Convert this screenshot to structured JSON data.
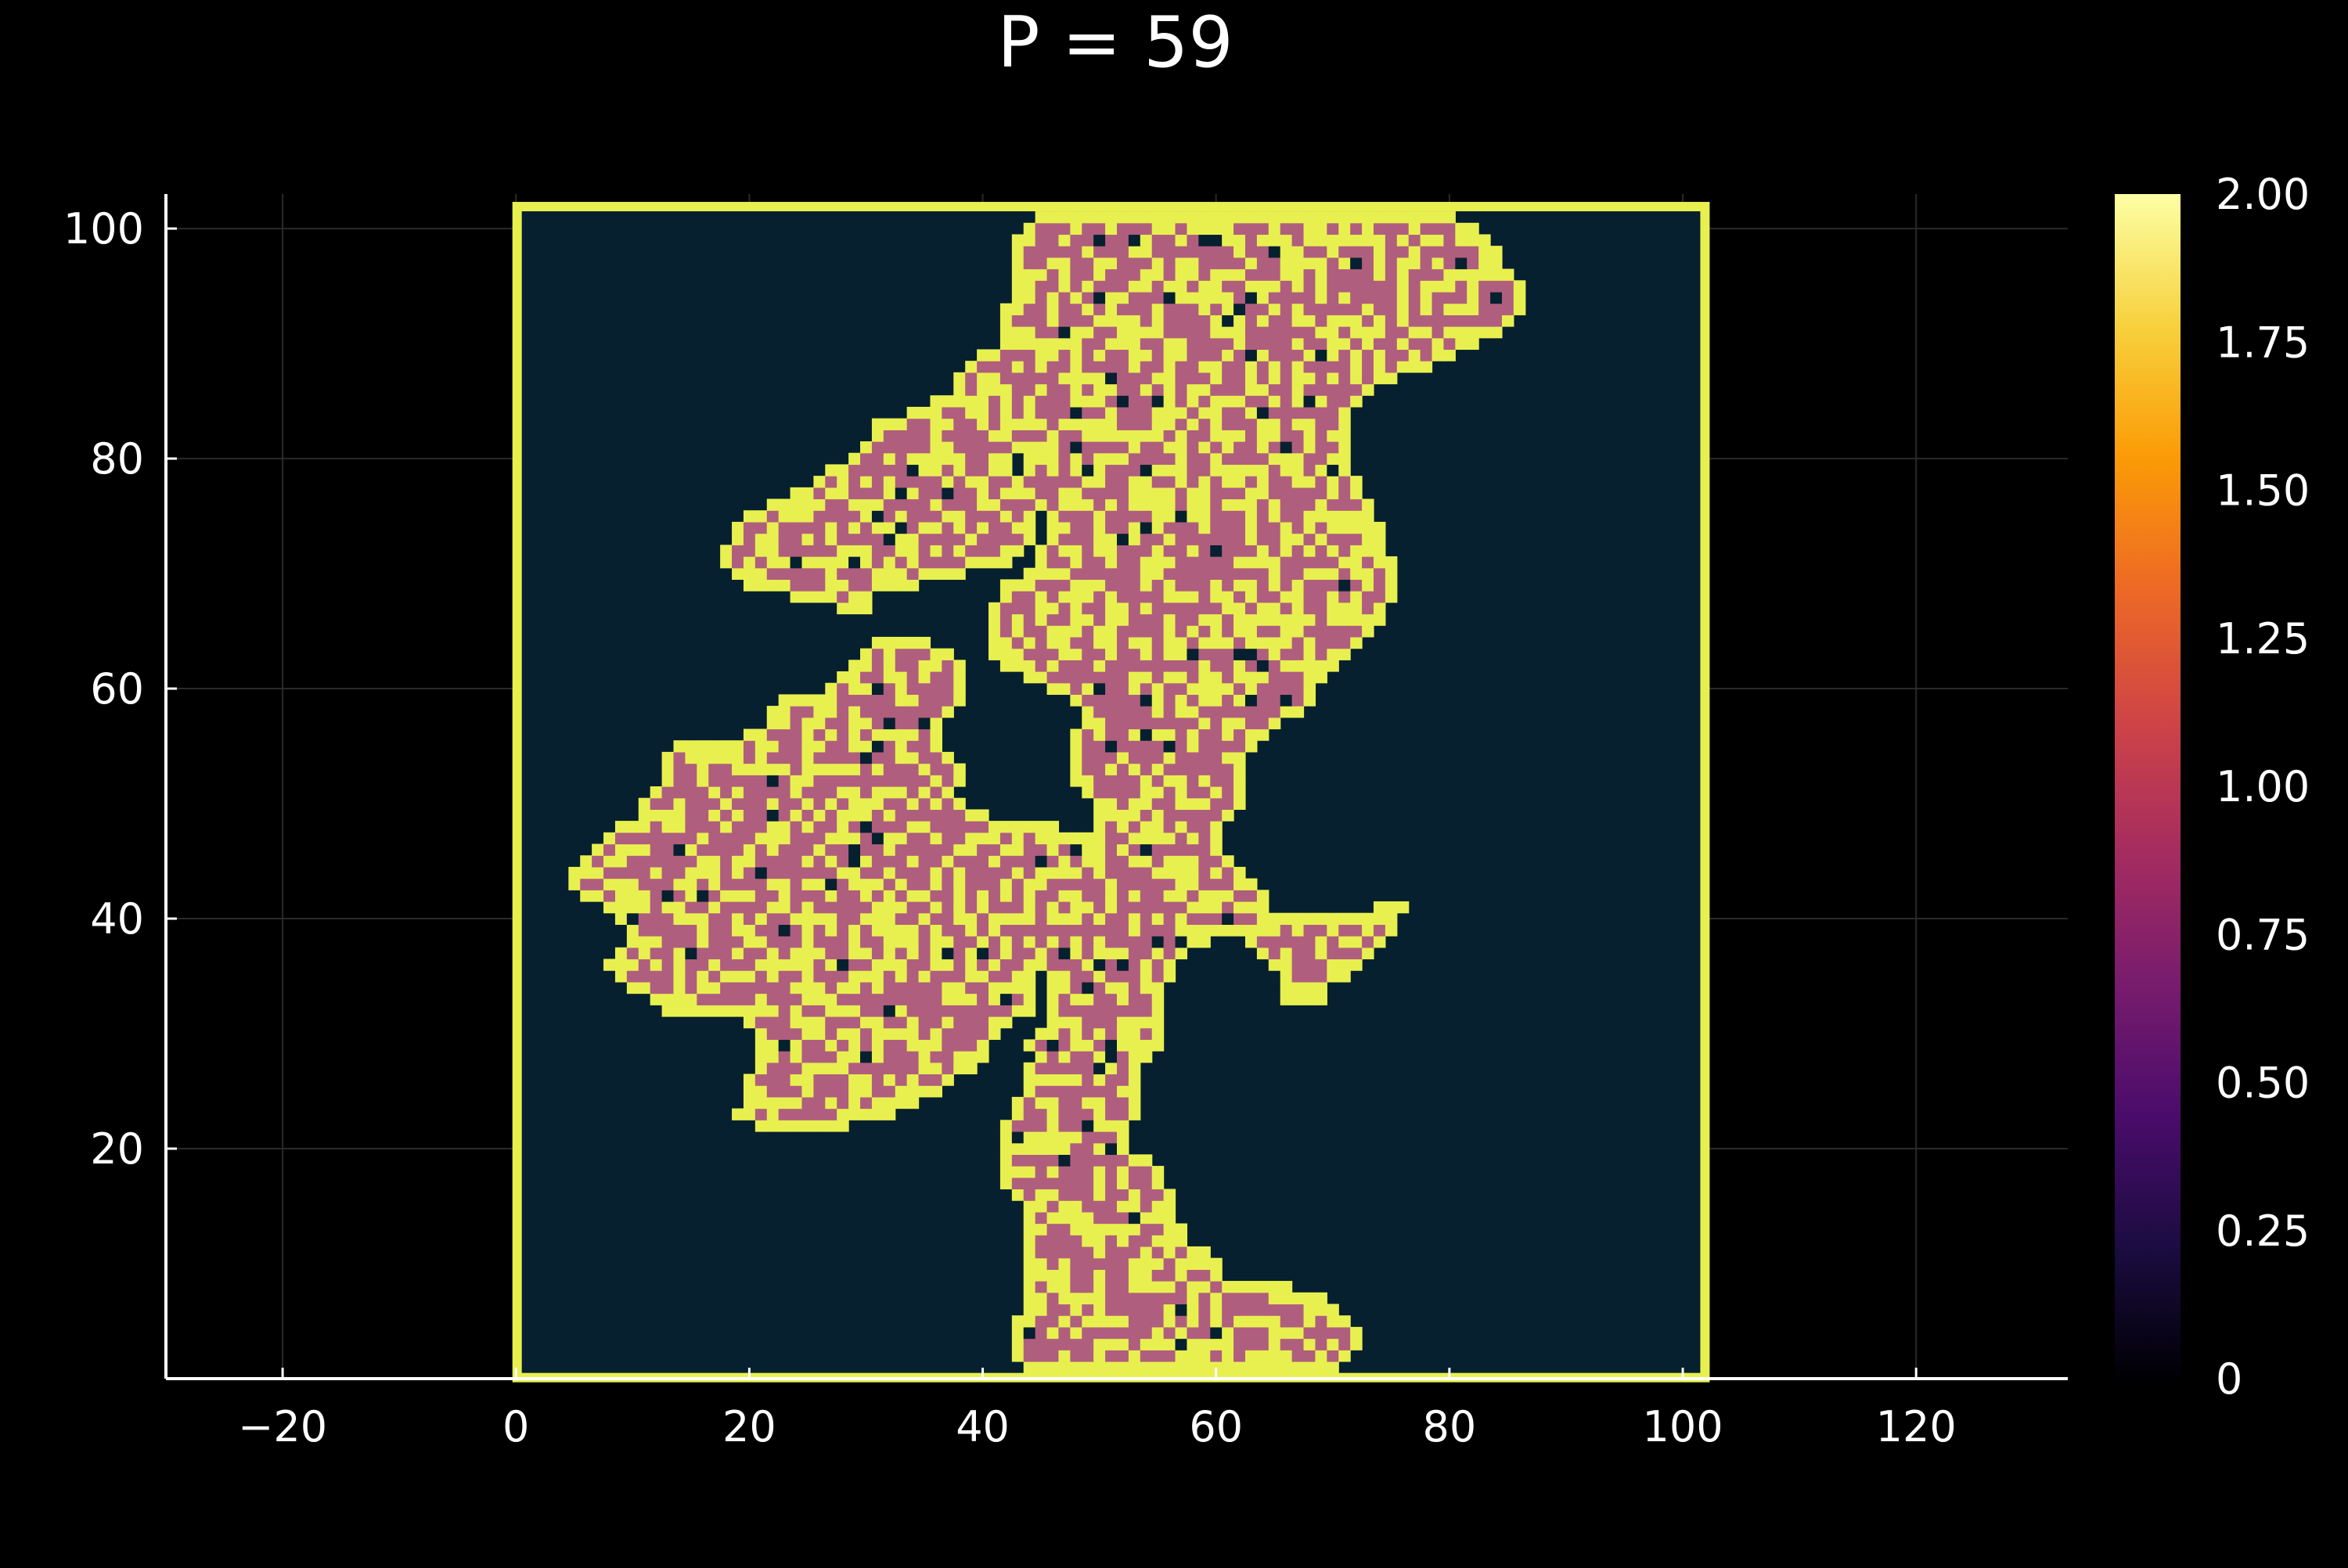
{
  "chart_data": {
    "type": "heatmap",
    "title": "P = 59",
    "xlabel": "",
    "ylabel": "",
    "xlim": [
      -30,
      133
    ],
    "ylim": [
      0,
      103
    ],
    "x_ticks": [
      -20,
      0,
      20,
      40,
      60,
      80,
      100,
      120
    ],
    "x_tick_labels": [
      "−20",
      "0",
      "20",
      "40",
      "60",
      "80",
      "100",
      "120"
    ],
    "y_ticks": [
      20,
      40,
      60,
      80,
      100
    ],
    "y_tick_labels": [
      "20",
      "40",
      "60",
      "80",
      "100"
    ],
    "grid": true,
    "grid_x": [
      1,
      101
    ],
    "grid_y": [
      1,
      101
    ],
    "value_range": [
      0,
      2
    ],
    "colorbar": {
      "ticks": [
        0,
        0.25,
        0.5,
        0.75,
        1.0,
        1.25,
        1.5,
        1.75,
        2.0
      ],
      "tick_labels": [
        "0",
        "0.25",
        "0.50",
        "0.75",
        "1.00",
        "1.25",
        "1.50",
        "1.75",
        "2.00"
      ]
    },
    "colormap": [
      "#000004",
      "#1b0c41",
      "#4a0c6b",
      "#781c6d",
      "#a52c60",
      "#cf4446",
      "#ed6925",
      "#fb9b06",
      "#f7d13d",
      "#fcffa4"
    ],
    "value_colors": {
      "0": "#062030",
      "1": "#b05e7e",
      "2": "#e8f050"
    },
    "boundary_value": 2,
    "cluster_value": 1,
    "cluster_row_spans": [
      [
        1,
        44,
        70
      ],
      [
        2,
        43,
        71
      ],
      [
        3,
        43,
        72
      ],
      [
        4,
        43,
        72
      ],
      [
        5,
        43,
        71
      ],
      [
        6,
        44,
        70
      ],
      [
        7,
        44,
        69
      ],
      [
        8,
        44,
        66
      ],
      [
        9,
        44,
        60
      ],
      [
        10,
        44,
        60
      ],
      [
        11,
        44,
        59
      ],
      [
        12,
        44,
        57
      ],
      [
        13,
        44,
        57
      ],
      [
        14,
        44,
        56
      ],
      [
        15,
        44,
        56
      ],
      [
        16,
        43,
        56
      ],
      [
        17,
        42,
        55
      ],
      [
        18,
        42,
        55
      ],
      [
        19,
        42,
        54
      ],
      [
        20,
        42,
        52
      ],
      [
        21,
        42,
        52
      ],
      [
        22,
        42,
        52
      ],
      [
        23,
        43,
        53
      ],
      [
        24,
        43,
        53
      ],
      [
        25,
        44,
        53
      ],
      [
        26,
        44,
        53
      ],
      [
        27,
        44,
        53
      ],
      [
        28,
        45,
        54
      ],
      [
        29,
        44,
        55
      ],
      [
        30,
        45,
        55
      ],
      [
        31,
        46,
        55
      ],
      [
        32,
        46,
        55
      ],
      [
        33,
        46,
        55
      ],
      [
        34,
        46,
        55
      ],
      [
        35,
        46,
        56
      ],
      [
        36,
        46,
        56
      ],
      [
        37,
        47,
        57
      ],
      [
        38,
        48,
        59
      ],
      [
        39,
        49,
        62
      ],
      [
        40,
        50,
        63
      ],
      [
        41,
        50,
        64
      ],
      [
        42,
        50,
        64
      ],
      [
        43,
        50,
        63
      ],
      [
        44,
        50,
        62
      ],
      [
        45,
        50,
        61
      ],
      [
        46,
        50,
        60
      ],
      [
        47,
        50,
        60
      ],
      [
        48,
        50,
        60
      ],
      [
        49,
        50,
        61
      ],
      [
        50,
        50,
        62
      ],
      [
        51,
        49,
        62
      ],
      [
        52,
        48,
        62
      ],
      [
        53,
        48,
        62
      ],
      [
        54,
        48,
        62
      ],
      [
        55,
        48,
        63
      ],
      [
        56,
        48,
        64
      ],
      [
        57,
        49,
        65
      ],
      [
        58,
        49,
        67
      ],
      [
        59,
        48,
        68
      ],
      [
        60,
        46,
        68
      ],
      [
        61,
        44,
        69
      ],
      [
        62,
        42,
        70
      ],
      [
        63,
        41,
        71
      ],
      [
        64,
        41,
        72
      ],
      [
        65,
        41,
        73
      ],
      [
        66,
        41,
        74
      ],
      [
        67,
        41,
        74
      ],
      [
        68,
        42,
        75
      ],
      [
        69,
        42,
        75
      ],
      [
        70,
        44,
        75
      ],
      [
        71,
        45,
        75
      ],
      [
        72,
        45,
        74
      ],
      [
        73,
        46,
        74
      ],
      [
        74,
        46,
        74
      ],
      [
        75,
        46,
        73
      ],
      [
        76,
        45,
        73
      ],
      [
        77,
        45,
        72
      ],
      [
        78,
        44,
        72
      ],
      [
        79,
        44,
        71
      ],
      [
        80,
        44,
        71
      ],
      [
        81,
        43,
        71
      ],
      [
        82,
        42,
        71
      ],
      [
        83,
        42,
        71
      ],
      [
        84,
        42,
        71
      ],
      [
        85,
        42,
        72
      ],
      [
        86,
        42,
        73
      ],
      [
        87,
        43,
        75
      ],
      [
        88,
        43,
        78
      ],
      [
        89,
        42,
        80
      ],
      [
        90,
        42,
        82
      ],
      [
        91,
        42,
        84
      ],
      [
        92,
        42,
        85
      ],
      [
        93,
        42,
        86
      ],
      [
        94,
        43,
        86
      ],
      [
        95,
        43,
        86
      ],
      [
        96,
        43,
        85
      ],
      [
        97,
        43,
        84
      ],
      [
        98,
        43,
        84
      ],
      [
        99,
        43,
        83
      ],
      [
        100,
        44,
        82
      ],
      [
        101,
        45,
        80
      ]
    ],
    "side_lobes": [
      {
        "rows": [
          [
            78,
            26,
            44
          ],
          [
            77,
            24,
            44
          ],
          [
            76,
            22,
            44
          ],
          [
            75,
            20,
            44
          ],
          [
            74,
            19,
            44
          ],
          [
            73,
            19,
            44
          ],
          [
            72,
            18,
            43
          ],
          [
            71,
            18,
            42
          ],
          [
            70,
            19,
            38
          ],
          [
            69,
            20,
            34
          ],
          [
            68,
            24,
            30
          ],
          [
            67,
            28,
            30
          ],
          [
            79,
            27,
            42
          ],
          [
            80,
            29,
            42
          ],
          [
            81,
            30,
            42
          ],
          [
            82,
            31,
            42
          ],
          [
            83,
            31,
            42
          ],
          [
            84,
            34,
            42
          ],
          [
            85,
            36,
            43
          ],
          [
            86,
            38,
            43
          ],
          [
            87,
            38,
            44
          ],
          [
            88,
            39,
            44
          ],
          [
            89,
            40,
            45
          ]
        ]
      },
      {
        "rows": [
          [
            64,
            31,
            35
          ],
          [
            63,
            30,
            37
          ],
          [
            62,
            29,
            38
          ],
          [
            61,
            28,
            38
          ],
          [
            60,
            27,
            38
          ],
          [
            59,
            23,
            38
          ],
          [
            58,
            22,
            37
          ],
          [
            57,
            22,
            36
          ],
          [
            56,
            20,
            36
          ],
          [
            55,
            14,
            36
          ],
          [
            54,
            13,
            37
          ],
          [
            53,
            13,
            38
          ],
          [
            52,
            13,
            38
          ],
          [
            51,
            12,
            37
          ],
          [
            50,
            11,
            38
          ],
          [
            49,
            11,
            40
          ],
          [
            48,
            9,
            46
          ],
          [
            47,
            8,
            50
          ],
          [
            46,
            7,
            50
          ],
          [
            45,
            6,
            50
          ],
          [
            44,
            5,
            50
          ],
          [
            43,
            5,
            50
          ],
          [
            42,
            6,
            50
          ],
          [
            41,
            8,
            50
          ],
          [
            40,
            9,
            50
          ],
          [
            39,
            10,
            50
          ],
          [
            38,
            10,
            50
          ],
          [
            37,
            9,
            48
          ],
          [
            36,
            8,
            46
          ],
          [
            35,
            9,
            44
          ],
          [
            34,
            10,
            44
          ],
          [
            33,
            12,
            44
          ],
          [
            32,
            13,
            44
          ],
          [
            31,
            20,
            42
          ],
          [
            30,
            21,
            41
          ],
          [
            29,
            21,
            40
          ],
          [
            28,
            21,
            40
          ],
          [
            27,
            21,
            39
          ],
          [
            26,
            20,
            37
          ],
          [
            25,
            20,
            36
          ],
          [
            24,
            20,
            34
          ],
          [
            23,
            19,
            32
          ],
          [
            22,
            21,
            28
          ]
        ]
      },
      {
        "rows": [
          [
            41,
            74,
            76
          ],
          [
            40,
            63,
            75
          ],
          [
            39,
            63,
            75
          ],
          [
            38,
            63,
            74
          ],
          [
            37,
            64,
            73
          ],
          [
            36,
            65,
            72
          ],
          [
            35,
            66,
            71
          ],
          [
            34,
            66,
            69
          ],
          [
            33,
            66,
            69
          ]
        ]
      }
    ]
  }
}
